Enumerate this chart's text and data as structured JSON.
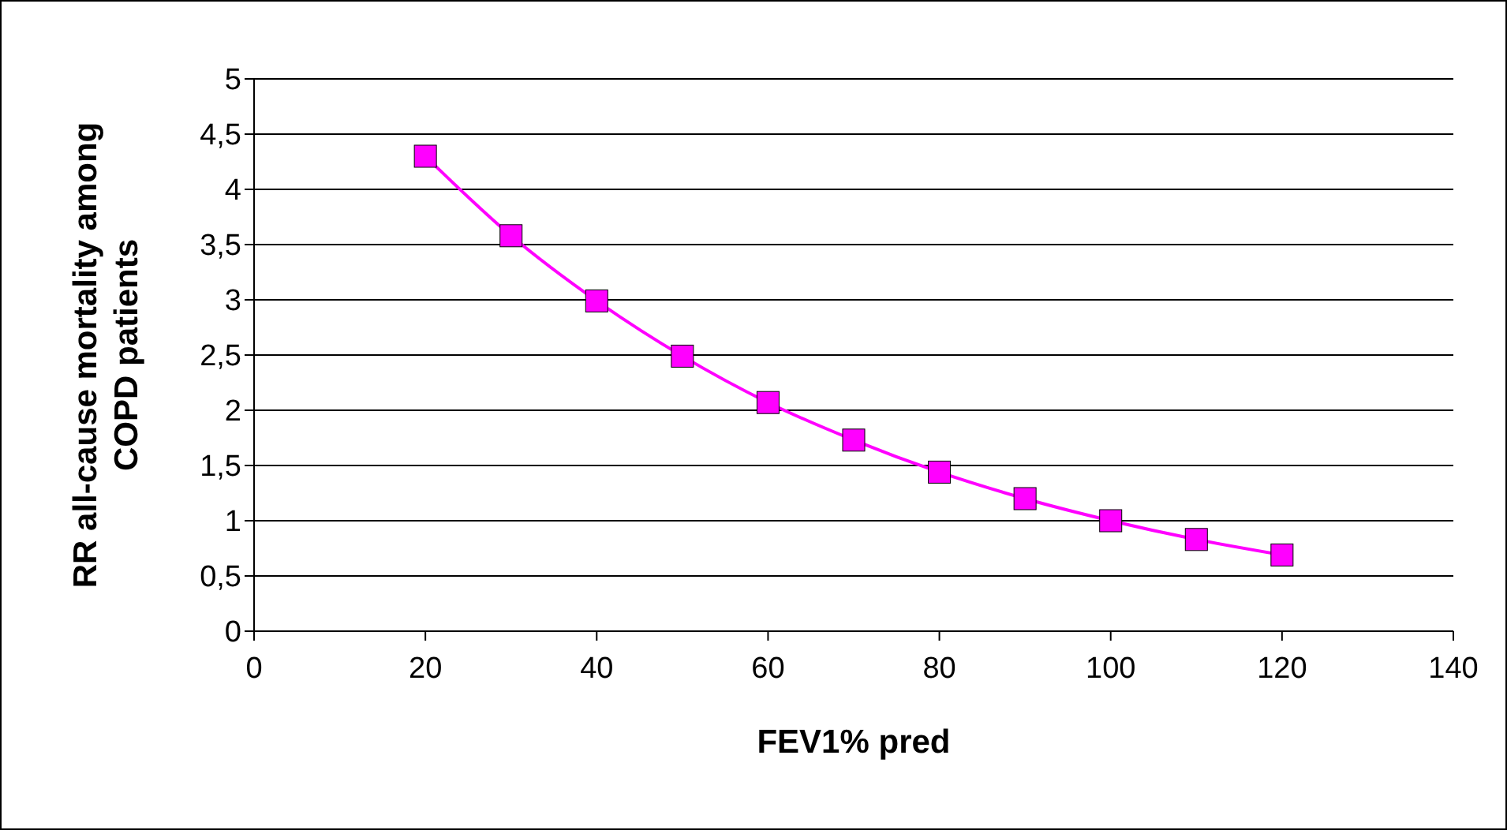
{
  "chart_data": {
    "type": "line",
    "xlabel": "FEV1% pred",
    "ylabel": "RR all-cause mortality among COPD patients",
    "x": [
      20,
      30,
      40,
      50,
      60,
      70,
      80,
      90,
      100,
      110,
      120
    ],
    "series": [
      {
        "color": "#ff00ff",
        "values": [
          4.3,
          3.58,
          2.99,
          2.49,
          2.07,
          1.73,
          1.44,
          1.2,
          1.0,
          0.83,
          0.69
        ]
      }
    ],
    "xlim": [
      0,
      140
    ],
    "xticks": [
      0,
      20,
      40,
      60,
      80,
      100,
      120,
      140
    ],
    "ylim": [
      0,
      5
    ],
    "yticks": [
      0,
      {
        "value": 0.5,
        "label": "0,5"
      },
      1,
      {
        "value": 1.5,
        "label": "1,5"
      },
      2,
      {
        "value": 2.5,
        "label": "2,5"
      },
      3,
      {
        "value": 3.5,
        "label": "3,5"
      },
      4,
      {
        "value": 4.5,
        "label": "4,5"
      },
      5
    ],
    "grid": "y",
    "marker": "square",
    "line_style": "solid"
  }
}
